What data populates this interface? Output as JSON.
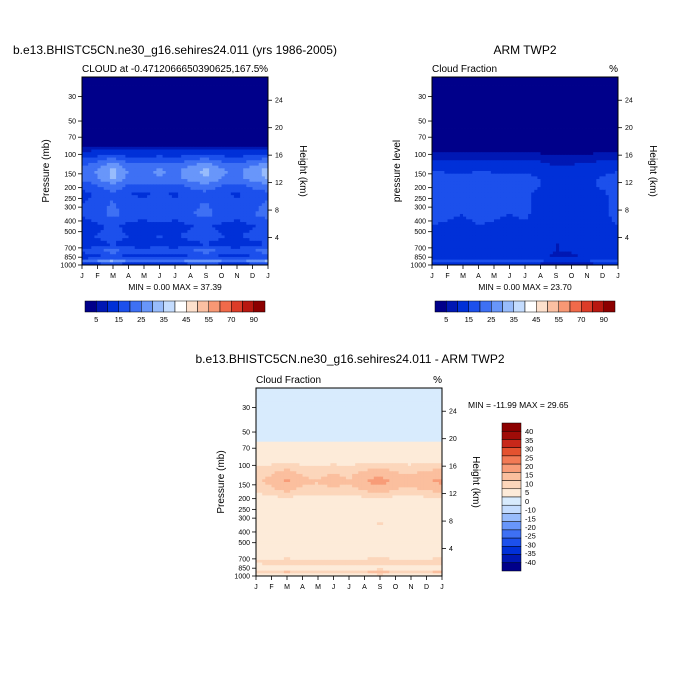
{
  "months": [
    "J",
    "F",
    "M",
    "A",
    "M",
    "J",
    "J",
    "A",
    "S",
    "O",
    "N",
    "D",
    "J"
  ],
  "colors": {
    "abs_palette": [
      "#00008a",
      "#0018b4",
      "#0030d8",
      "#1c50ec",
      "#3e70f4",
      "#6896fa",
      "#98bcfc",
      "#c4dcfe",
      "#ffffff",
      "#fde0cc",
      "#fbc0a2",
      "#f89874",
      "#f06a4a",
      "#dc3c28",
      "#b81810",
      "#8c0000"
    ],
    "diff_palette": [
      "#00008a",
      "#0018b4",
      "#0030d8",
      "#1c50ec",
      "#3e70f4",
      "#6896fa",
      "#98bcfc",
      "#c4dcfe",
      "#d8ebfd",
      "#fdebd9",
      "#fcd6bb",
      "#fbbf9e",
      "#f89c78",
      "#f27a55",
      "#e4522f",
      "#c8281a",
      "#a00c08",
      "#8c0000"
    ]
  },
  "chart_data": [
    {
      "type": "heatmap",
      "title": "b.e13.BHISTC5CN.ne30_g16.sehires24.011 (yrs 1986-2005)",
      "subtitle_left": "CLOUD at -0.4712066650390625,167.5",
      "subtitle_right": "%",
      "xlabel": "",
      "ylabel": "Pressure (mb)",
      "ylabel_right": "Height (km)",
      "x_ticks": [
        "J",
        "F",
        "M",
        "A",
        "M",
        "J",
        "J",
        "A",
        "S",
        "O",
        "N",
        "D",
        "J"
      ],
      "y_ticks": [
        30,
        50,
        70,
        100,
        150,
        200,
        250,
        300,
        400,
        500,
        700,
        850,
        1000
      ],
      "y_scale": "log",
      "ylim": [
        1000,
        20
      ],
      "height_ticks_km": [
        4,
        8,
        12,
        16,
        20,
        24
      ],
      "min_label": "MIN =   0.00 MAX =  37.39",
      "min": 0.0,
      "max": 37.39,
      "colorbar": {
        "orientation": "horizontal",
        "levels": [
          2.5,
          5,
          10,
          15,
          20,
          25,
          30,
          35,
          40,
          45,
          50,
          55,
          60,
          70,
          80,
          90
        ],
        "labels": [
          "5",
          "15",
          "25",
          "35",
          "45",
          "55",
          "70",
          "90"
        ]
      },
      "profile_p": [
        1000,
        925,
        850,
        750,
        650,
        550,
        450,
        350,
        280,
        230,
        190,
        165,
        140,
        120,
        100,
        85,
        70,
        50,
        30,
        20
      ],
      "profile_v": [
        3,
        22,
        8,
        15,
        8,
        11,
        9,
        14,
        13,
        11,
        16,
        21,
        22,
        17,
        9,
        2,
        0.5,
        0,
        0,
        0
      ],
      "month_factor": [
        0.75,
        0.95,
        1.22,
        0.9,
        0.85,
        0.95,
        0.85,
        1.05,
        1.2,
        0.95,
        0.85,
        1.05,
        1.22
      ]
    },
    {
      "type": "heatmap",
      "title": "ARM TWP2",
      "subtitle_left": "Cloud Fraction",
      "subtitle_right": "%",
      "xlabel": "",
      "ylabel": "pressure level",
      "ylabel_right": "Height (km)",
      "x_ticks": [
        "J",
        "F",
        "M",
        "A",
        "M",
        "J",
        "J",
        "A",
        "S",
        "O",
        "N",
        "D",
        "J"
      ],
      "y_ticks": [
        30,
        50,
        70,
        100,
        150,
        200,
        250,
        300,
        400,
        500,
        700,
        850,
        1000
      ],
      "y_scale": "log",
      "ylim": [
        1000,
        20
      ],
      "height_ticks_km": [
        4,
        8,
        12,
        16,
        20,
        24
      ],
      "min_label": "MIN =   0.00 MAX =  23.70",
      "min": 0.0,
      "max": 23.7,
      "colorbar": {
        "orientation": "horizontal",
        "levels": [
          2.5,
          5,
          10,
          15,
          20,
          25,
          30,
          35,
          40,
          45,
          50,
          55,
          60,
          70,
          80,
          90
        ],
        "labels": [
          "5",
          "15",
          "25",
          "35",
          "45",
          "55",
          "70",
          "90"
        ]
      },
      "profile_p": [
        1000,
        925,
        850,
        750,
        650,
        550,
        450,
        350,
        280,
        230,
        190,
        165,
        140,
        120,
        100,
        85,
        70,
        50,
        30,
        20
      ],
      "profile_v": [
        2,
        12,
        6,
        7,
        7,
        8,
        9,
        10,
        10,
        10,
        11,
        11,
        9,
        6,
        3,
        1,
        0.3,
        0,
        0,
        0
      ],
      "month_factor": [
        1.1,
        1.05,
        1.0,
        1.1,
        1.05,
        1.0,
        1.05,
        0.9,
        0.7,
        0.75,
        0.85,
        0.95,
        1.1
      ]
    },
    {
      "type": "heatmap",
      "title": "b.e13.BHISTC5CN.ne30_g16.sehires24.011 - ARM TWP2",
      "subtitle_left": "Cloud Fraction",
      "subtitle_right": "%",
      "xlabel": "",
      "ylabel": "Pressure (mb)",
      "ylabel_right": "Height (km)",
      "x_ticks": [
        "J",
        "F",
        "M",
        "A",
        "M",
        "J",
        "J",
        "A",
        "S",
        "O",
        "N",
        "D",
        "J"
      ],
      "y_ticks": [
        30,
        50,
        70,
        100,
        150,
        200,
        250,
        300,
        400,
        500,
        700,
        850,
        1000
      ],
      "y_scale": "log",
      "ylim": [
        1000,
        20
      ],
      "height_ticks_km": [
        4,
        8,
        12,
        16,
        20,
        24
      ],
      "min_label": "MIN = -11.99 MAX =  29.65",
      "min": -11.99,
      "max": 29.65,
      "colorbar": {
        "orientation": "vertical",
        "levels": [
          -40,
          -35,
          -30,
          -25,
          -20,
          -15,
          -10,
          -5,
          0,
          5,
          10,
          15,
          20,
          25,
          30,
          35,
          40
        ],
        "labels": [
          "40",
          "35",
          "30",
          "25",
          "20",
          "15",
          "10",
          "5",
          "0",
          "-10",
          "-15",
          "-20",
          "-25",
          "-30",
          "-35",
          "-40"
        ]
      },
      "profile_p": [
        1000,
        925,
        850,
        750,
        650,
        550,
        450,
        350,
        280,
        230,
        190,
        165,
        140,
        120,
        100,
        85,
        70,
        50,
        30,
        20
      ],
      "profile_v": [
        1,
        9,
        2,
        8,
        1,
        3,
        0,
        4,
        3,
        1,
        5,
        10,
        13,
        11,
        6,
        1,
        0.5,
        -1,
        -2,
        -2
      ],
      "month_factor": [
        0.7,
        0.9,
        1.25,
        0.85,
        0.8,
        0.95,
        0.8,
        1.1,
        1.35,
        1.0,
        0.9,
        1.1,
        1.25
      ]
    }
  ]
}
